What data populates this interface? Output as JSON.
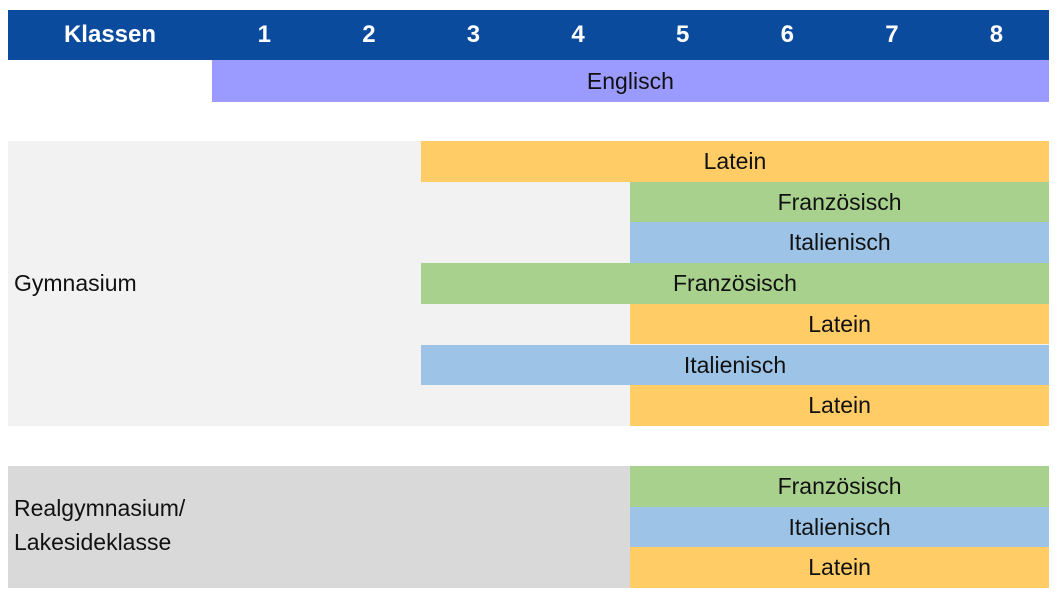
{
  "colors": {
    "header": "#0a4b9e",
    "english": "#9b9bff",
    "latin": "#ffcc66",
    "french": "#a9d18e",
    "italian": "#9dc3e6",
    "gymnasium_bg": "#f2f2f2",
    "realgymnasium_bg": "#d9d9d9"
  },
  "header": {
    "title": "Klassen",
    "grades": [
      "1",
      "2",
      "3",
      "4",
      "5",
      "6",
      "7",
      "8"
    ]
  },
  "english_bar": {
    "label": "Englisch",
    "from_grade": 1,
    "to_grade": 8
  },
  "gymnasium": {
    "label": "Gymnasium",
    "bars": [
      {
        "label": "Latein",
        "from_grade": 3,
        "to_grade": 8,
        "color": "#ffcc66"
      },
      {
        "label": "Französisch",
        "from_grade": 5,
        "to_grade": 8,
        "color": "#a9d18e"
      },
      {
        "label": "Italienisch",
        "from_grade": 5,
        "to_grade": 8,
        "color": "#9dc3e6"
      },
      {
        "label": "Französisch",
        "from_grade": 3,
        "to_grade": 8,
        "color": "#a9d18e"
      },
      {
        "label": "Latein",
        "from_grade": 5,
        "to_grade": 8,
        "color": "#ffcc66"
      },
      {
        "label": "Italienisch",
        "from_grade": 3,
        "to_grade": 8,
        "color": "#9dc3e6"
      },
      {
        "label": "Latein",
        "from_grade": 5,
        "to_grade": 8,
        "color": "#ffcc66"
      }
    ]
  },
  "realgymnasium": {
    "label_line1": "Realgymnasium/",
    "label_line2": "Lakesideklasse",
    "bars": [
      {
        "label": "Französisch",
        "from_grade": 5,
        "to_grade": 8,
        "color": "#a9d18e"
      },
      {
        "label": "Italienisch",
        "from_grade": 5,
        "to_grade": 8,
        "color": "#9dc3e6"
      },
      {
        "label": "Latein",
        "from_grade": 5,
        "to_grade": 8,
        "color": "#ffcc66"
      }
    ]
  }
}
